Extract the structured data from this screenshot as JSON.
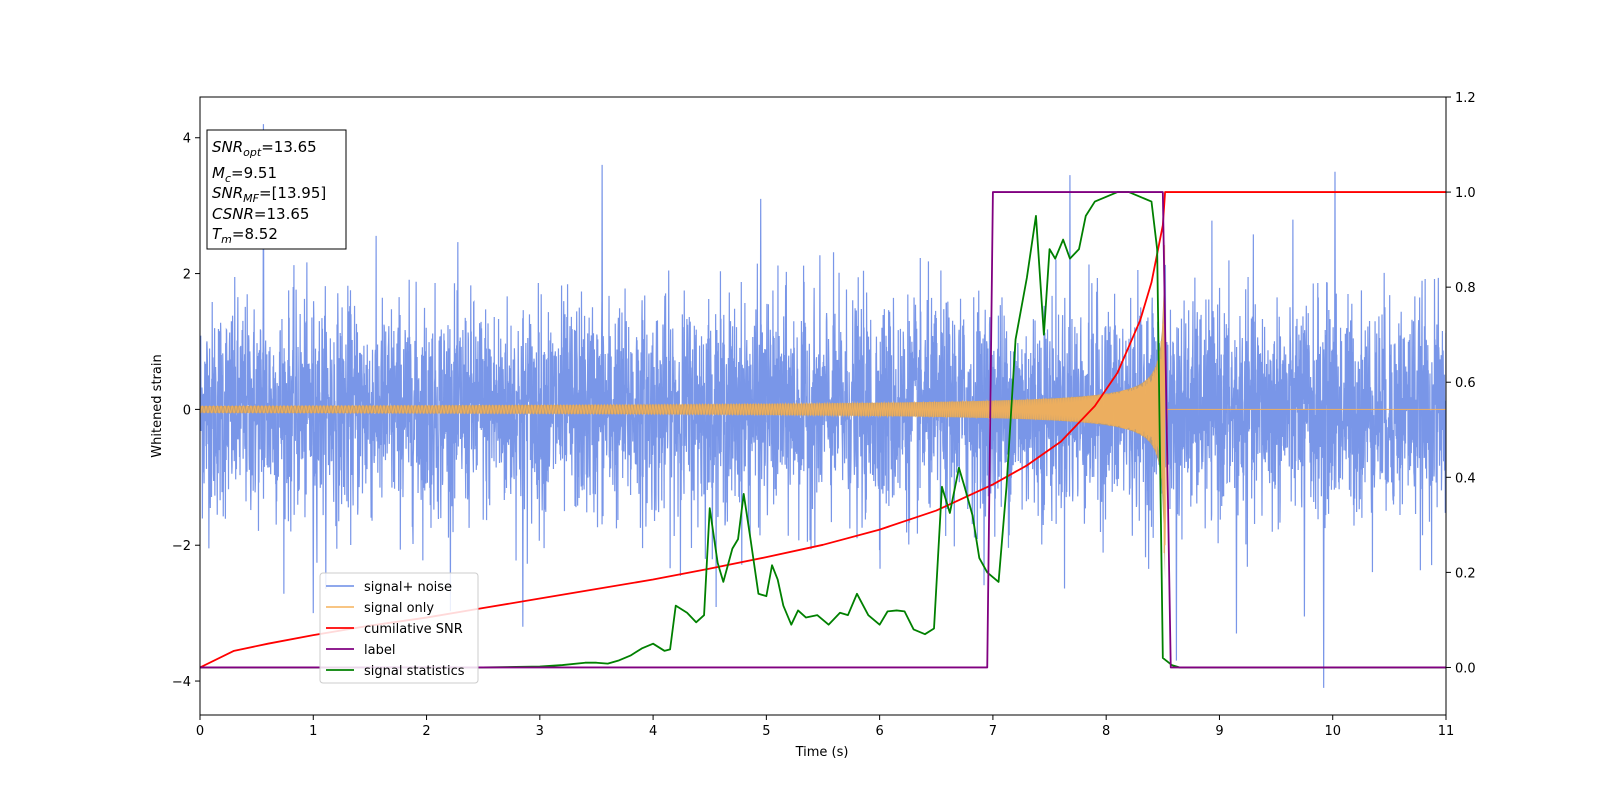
{
  "chart_data": {
    "type": "line",
    "xlabel": "Time (s)",
    "ylabel": "Whitened strain",
    "xlim": [
      0,
      11
    ],
    "ylim_left": [
      -4.5,
      4.6
    ],
    "ylim_right": [
      -0.1,
      1.2
    ],
    "x_ticks": [
      "0",
      "1",
      "2",
      "3",
      "4",
      "5",
      "6",
      "7",
      "8",
      "9",
      "10",
      "11"
    ],
    "y_left_ticks": [
      "−4",
      "−2",
      "0",
      "2",
      "4"
    ],
    "y_left_tick_values": [
      -4,
      -2,
      0,
      2,
      4
    ],
    "y_right_ticks": [
      "0.0",
      "0.2",
      "0.4",
      "0.6",
      "0.8",
      "1.0",
      "1.2"
    ],
    "y_right_tick_values": [
      0.0,
      0.2,
      0.4,
      0.6,
      0.8,
      1.0,
      1.2
    ],
    "legend_position": "lower-left",
    "grid": false,
    "series": [
      {
        "name": "signal+ noise",
        "axis": "left",
        "color": "#6a8be6",
        "style": "noise",
        "noise_band": 1.4,
        "x_range": [
          0,
          11
        ],
        "spikes": [
          [
            0.56,
            4.2
          ],
          [
            3.55,
            3.6
          ],
          [
            7.68,
            3.45
          ],
          [
            10.02,
            3.5
          ],
          [
            9.92,
            -4.1
          ],
          [
            2.85,
            -3.2
          ],
          [
            8.62,
            -3.7
          ],
          [
            9.15,
            -3.3
          ],
          [
            9.75,
            -3.05
          ],
          [
            1.0,
            -3.0
          ],
          [
            4.95,
            3.1
          ]
        ]
      },
      {
        "name": "signal only",
        "axis": "left",
        "color": "#f5b25a",
        "style": "chirp",
        "t_merge": 8.52
      },
      {
        "name": "cumilative SNR",
        "axis": "right",
        "color": "#ff0000",
        "x": [
          0.0,
          0.3,
          0.6,
          1.0,
          1.5,
          2.0,
          2.5,
          3.0,
          3.5,
          4.0,
          4.5,
          5.0,
          5.5,
          6.0,
          6.5,
          7.0,
          7.3,
          7.6,
          7.9,
          8.1,
          8.3,
          8.4,
          8.5,
          8.52,
          8.55,
          9.0,
          10.0,
          11.0
        ],
        "y": [
          0.0,
          0.035,
          0.05,
          0.068,
          0.088,
          0.105,
          0.125,
          0.145,
          0.165,
          0.185,
          0.208,
          0.232,
          0.258,
          0.29,
          0.33,
          0.385,
          0.425,
          0.475,
          0.55,
          0.62,
          0.73,
          0.81,
          0.93,
          1.0,
          1.0,
          1.0,
          1.0,
          1.0
        ]
      },
      {
        "name": "label",
        "axis": "right",
        "color": "#800080",
        "x": [
          0.0,
          6.95,
          7.0,
          8.5,
          8.57,
          11.0
        ],
        "y": [
          0.0,
          0.0,
          1.0,
          1.0,
          0.0,
          0.0
        ]
      },
      {
        "name": "signal statistics",
        "axis": "right",
        "color": "#008000",
        "x": [
          0.0,
          1.0,
          2.0,
          2.5,
          3.0,
          3.2,
          3.4,
          3.5,
          3.6,
          3.7,
          3.8,
          3.9,
          4.0,
          4.1,
          4.15,
          4.2,
          4.3,
          4.38,
          4.45,
          4.5,
          4.57,
          4.62,
          4.7,
          4.75,
          4.8,
          4.86,
          4.93,
          5.0,
          5.05,
          5.1,
          5.15,
          5.22,
          5.28,
          5.35,
          5.45,
          5.55,
          5.65,
          5.72,
          5.8,
          5.9,
          6.0,
          6.07,
          6.15,
          6.22,
          6.3,
          6.4,
          6.48,
          6.55,
          6.62,
          6.7,
          6.75,
          6.82,
          6.88,
          6.95,
          7.05,
          7.12,
          7.2,
          7.3,
          7.38,
          7.45,
          7.5,
          7.55,
          7.62,
          7.68,
          7.76,
          7.82,
          7.9,
          8.0,
          8.1,
          8.2,
          8.3,
          8.4,
          8.45,
          8.5,
          8.58,
          8.65,
          9.0,
          10.0,
          11.0
        ],
        "y": [
          0.0,
          0.0,
          0.0,
          0.0,
          0.002,
          0.005,
          0.01,
          0.01,
          0.008,
          0.015,
          0.025,
          0.04,
          0.05,
          0.035,
          0.038,
          0.13,
          0.115,
          0.095,
          0.11,
          0.335,
          0.22,
          0.18,
          0.25,
          0.27,
          0.365,
          0.27,
          0.155,
          0.15,
          0.215,
          0.185,
          0.13,
          0.09,
          0.12,
          0.105,
          0.11,
          0.09,
          0.115,
          0.11,
          0.155,
          0.11,
          0.09,
          0.118,
          0.12,
          0.118,
          0.08,
          0.07,
          0.082,
          0.38,
          0.325,
          0.42,
          0.38,
          0.32,
          0.23,
          0.2,
          0.18,
          0.38,
          0.69,
          0.82,
          0.95,
          0.7,
          0.88,
          0.86,
          0.9,
          0.86,
          0.88,
          0.95,
          0.98,
          0.99,
          1.0,
          1.0,
          0.99,
          0.98,
          0.88,
          0.02,
          0.005,
          0.0,
          0.0,
          0.0,
          0.0
        ]
      }
    ],
    "annotations": [
      {
        "base": "SNR",
        "sub": "opt",
        "value": "=13.65"
      },
      {
        "base": "M",
        "sub": "c",
        "value": "=9.51"
      },
      {
        "base": "SNR",
        "sub": "MF",
        "value": "=[13.95]"
      },
      {
        "base": "CSNR",
        "sub": "",
        "value": "=13.65"
      },
      {
        "base": "T",
        "sub": "m",
        "value": "=8.52"
      }
    ]
  }
}
